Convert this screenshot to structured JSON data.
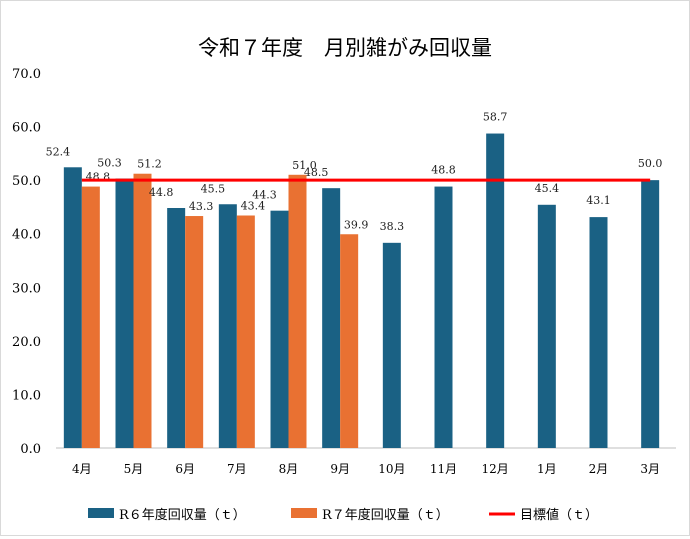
{
  "chart_data": {
    "type": "bar",
    "title": "令和７年度　月別雑がみ回収量",
    "categories": [
      "4月",
      "5月",
      "6月",
      "7月",
      "8月",
      "9月",
      "10月",
      "11月",
      "12月",
      "1月",
      "2月",
      "3月"
    ],
    "series": [
      {
        "name": "R６年度回収量（ｔ）",
        "type": "bar",
        "color": "#1a6184",
        "values": [
          52.4,
          50.3,
          44.8,
          45.5,
          44.3,
          48.5,
          38.3,
          48.8,
          58.7,
          45.4,
          43.1,
          50.0
        ]
      },
      {
        "name": "R７年度回収量（ｔ）",
        "type": "bar",
        "color": "#e97132",
        "values": [
          48.8,
          51.2,
          43.3,
          43.4,
          51.0,
          39.9,
          null,
          null,
          null,
          null,
          null,
          null
        ]
      },
      {
        "name": "目標値（ｔ）",
        "type": "line",
        "color": "#ff0000",
        "values": [
          50,
          50,
          50,
          50,
          50,
          50,
          50,
          50,
          50,
          50,
          50,
          50
        ]
      }
    ],
    "ylim": [
      0,
      70
    ],
    "yticks": [
      "0.0",
      "10.0",
      "20.0",
      "30.0",
      "40.0",
      "50.0",
      "60.0",
      "70.0"
    ],
    "grid": false,
    "legend": "bottom"
  }
}
